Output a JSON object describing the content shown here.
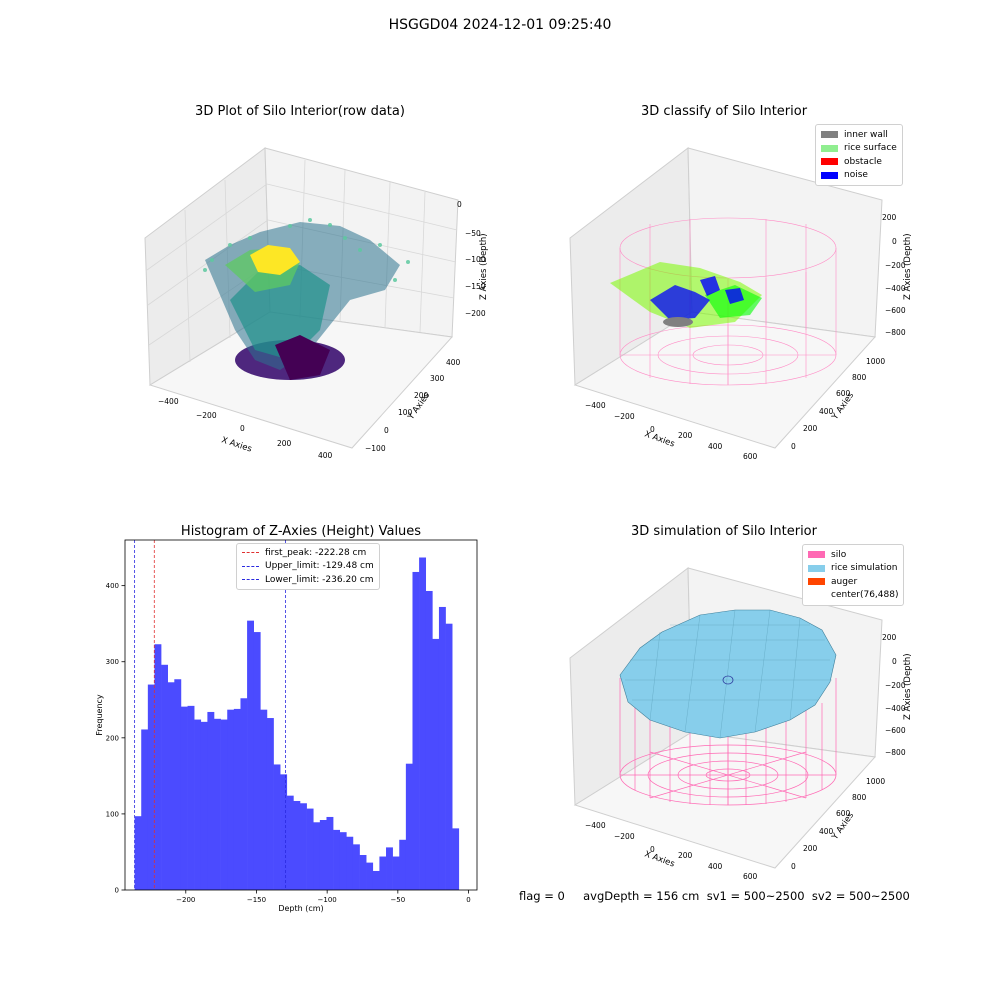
{
  "figure_title": "HSGGD04 2024-12-01 09:25:40",
  "footer_text": "flag = 0     avgDepth = 156 cm  sv1 = 500~2500  sv2 = 500~2500",
  "colors": {
    "hist_bar": "#4b4bff",
    "first_peak": "#e03030",
    "limits": "#2a2ae0",
    "inner_wall": "#808080",
    "rice_surface": "#90ee90",
    "obstacle": "#ff0000",
    "noise": "#0000ff",
    "silo": "#ff69b4",
    "rice_simulation": "#87ceeb",
    "auger": "#ff4500"
  },
  "panels": {
    "raw": {
      "title": "3D Plot of Silo Interior(row data)",
      "xlabel": "X Axies",
      "ylabel": "Y Axies",
      "zlabel": "Z Axies (Depth)",
      "xticks": [
        "−400",
        "−200",
        "0",
        "200",
        "400"
      ],
      "yticks": [
        "−100",
        "0",
        "100",
        "200",
        "300",
        "400"
      ],
      "zticks": [
        "0",
        "−50",
        "−100",
        "−150",
        "−200"
      ]
    },
    "classify": {
      "title": "3D classify of Silo Interior",
      "xlabel": "X Axies",
      "ylabel": "Y Axies",
      "zlabel": "Z Axies (Depth)",
      "xticks": [
        "−400",
        "−200",
        "0",
        "200",
        "400",
        "600"
      ],
      "yticks": [
        "0",
        "200",
        "400",
        "600",
        "800",
        "1000"
      ],
      "zticks": [
        "200",
        "0",
        "−200",
        "−400",
        "−600",
        "−800"
      ],
      "legend": [
        "inner wall",
        "rice surface",
        "obstacle",
        "noise"
      ]
    },
    "simulation": {
      "title": "3D simulation of Silo Interior",
      "xlabel": "X Axies",
      "ylabel": "Y Axies",
      "zlabel": "Z Axies (Depth)",
      "xticks": [
        "−400",
        "−200",
        "0",
        "200",
        "400",
        "600"
      ],
      "yticks": [
        "0",
        "200",
        "400",
        "600",
        "800",
        "1000"
      ],
      "zticks": [
        "200",
        "0",
        "−200",
        "−400",
        "−600",
        "−800"
      ],
      "legend": [
        "silo",
        "rice simulation",
        "auger",
        "center(76,488)"
      ]
    }
  },
  "chart_data": {
    "type": "bar",
    "title": "Histogram of Z-Axies (Height) Values",
    "xlabel": "Depth (cm)",
    "ylabel": "Frequency",
    "xlim": [
      -243,
      6
    ],
    "ylim": [
      0,
      460
    ],
    "xticks": [
      -200,
      -150,
      -100,
      -50,
      0
    ],
    "xtick_labels": [
      "−200",
      "−150",
      "−100",
      "−50",
      "0"
    ],
    "yticks": [
      0,
      100,
      200,
      300,
      400
    ],
    "bin_start": -236.2,
    "bin_width": 4.68,
    "values": [
      97,
      211,
      270,
      323,
      296,
      273,
      277,
      241,
      242,
      224,
      221,
      234,
      225,
      224,
      237,
      238,
      252,
      354,
      339,
      237,
      226,
      165,
      152,
      124,
      117,
      114,
      107,
      89,
      92,
      96,
      79,
      76,
      70,
      60,
      46,
      36,
      25,
      44,
      56,
      44,
      66,
      166,
      418,
      437,
      393,
      330,
      372,
      350,
      81
    ],
    "lines": [
      {
        "label": "first_peak: -222.28 cm",
        "x": -222.28,
        "style": "first_peak"
      },
      {
        "label": "Upper_limit: -129.48 cm",
        "x": -129.48,
        "style": "limits"
      },
      {
        "label": "Lower_limit: -236.20 cm",
        "x": -236.2,
        "style": "limits"
      }
    ],
    "grid": false,
    "legend_position": "top-center"
  }
}
